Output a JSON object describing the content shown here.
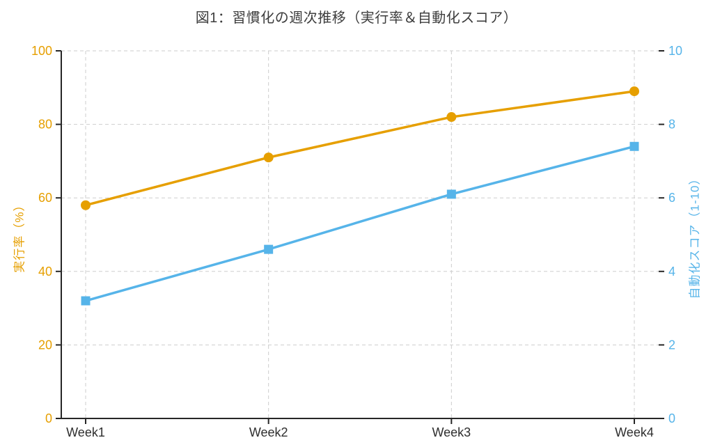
{
  "chart_data": {
    "type": "line",
    "title": "図1：習慣化の週次推移（実行率＆自動化スコア）",
    "categories": [
      "Week1",
      "Week2",
      "Week3",
      "Week4"
    ],
    "series": [
      {
        "name": "実行率",
        "axis": "left",
        "marker": "circle",
        "color": "#E69F00",
        "values": [
          58,
          71,
          82,
          89
        ]
      },
      {
        "name": "自動化スコア",
        "axis": "right",
        "marker": "square",
        "color": "#56B4E9",
        "values": [
          3.2,
          4.6,
          6.1,
          7.4
        ]
      }
    ],
    "left_axis": {
      "label": "実行率（%）",
      "ticks": [
        0,
        20,
        40,
        60,
        80,
        100
      ],
      "range": [
        0,
        100
      ],
      "color": "#E69F00"
    },
    "right_axis": {
      "label": "自動化スコア（1-10）",
      "ticks": [
        0,
        2,
        4,
        6,
        8,
        10
      ],
      "range": [
        0,
        10
      ],
      "color": "#56B4E9"
    },
    "x_axis": {
      "tick_labels": [
        "Week1",
        "Week2",
        "Week3",
        "Week4"
      ],
      "label_color": "#2e2e2e"
    },
    "grid": {
      "visible": true,
      "style": "dashed",
      "color": "#cdcdcd"
    },
    "spine_color": "#262626",
    "background": "#ffffff",
    "legend": "none"
  }
}
